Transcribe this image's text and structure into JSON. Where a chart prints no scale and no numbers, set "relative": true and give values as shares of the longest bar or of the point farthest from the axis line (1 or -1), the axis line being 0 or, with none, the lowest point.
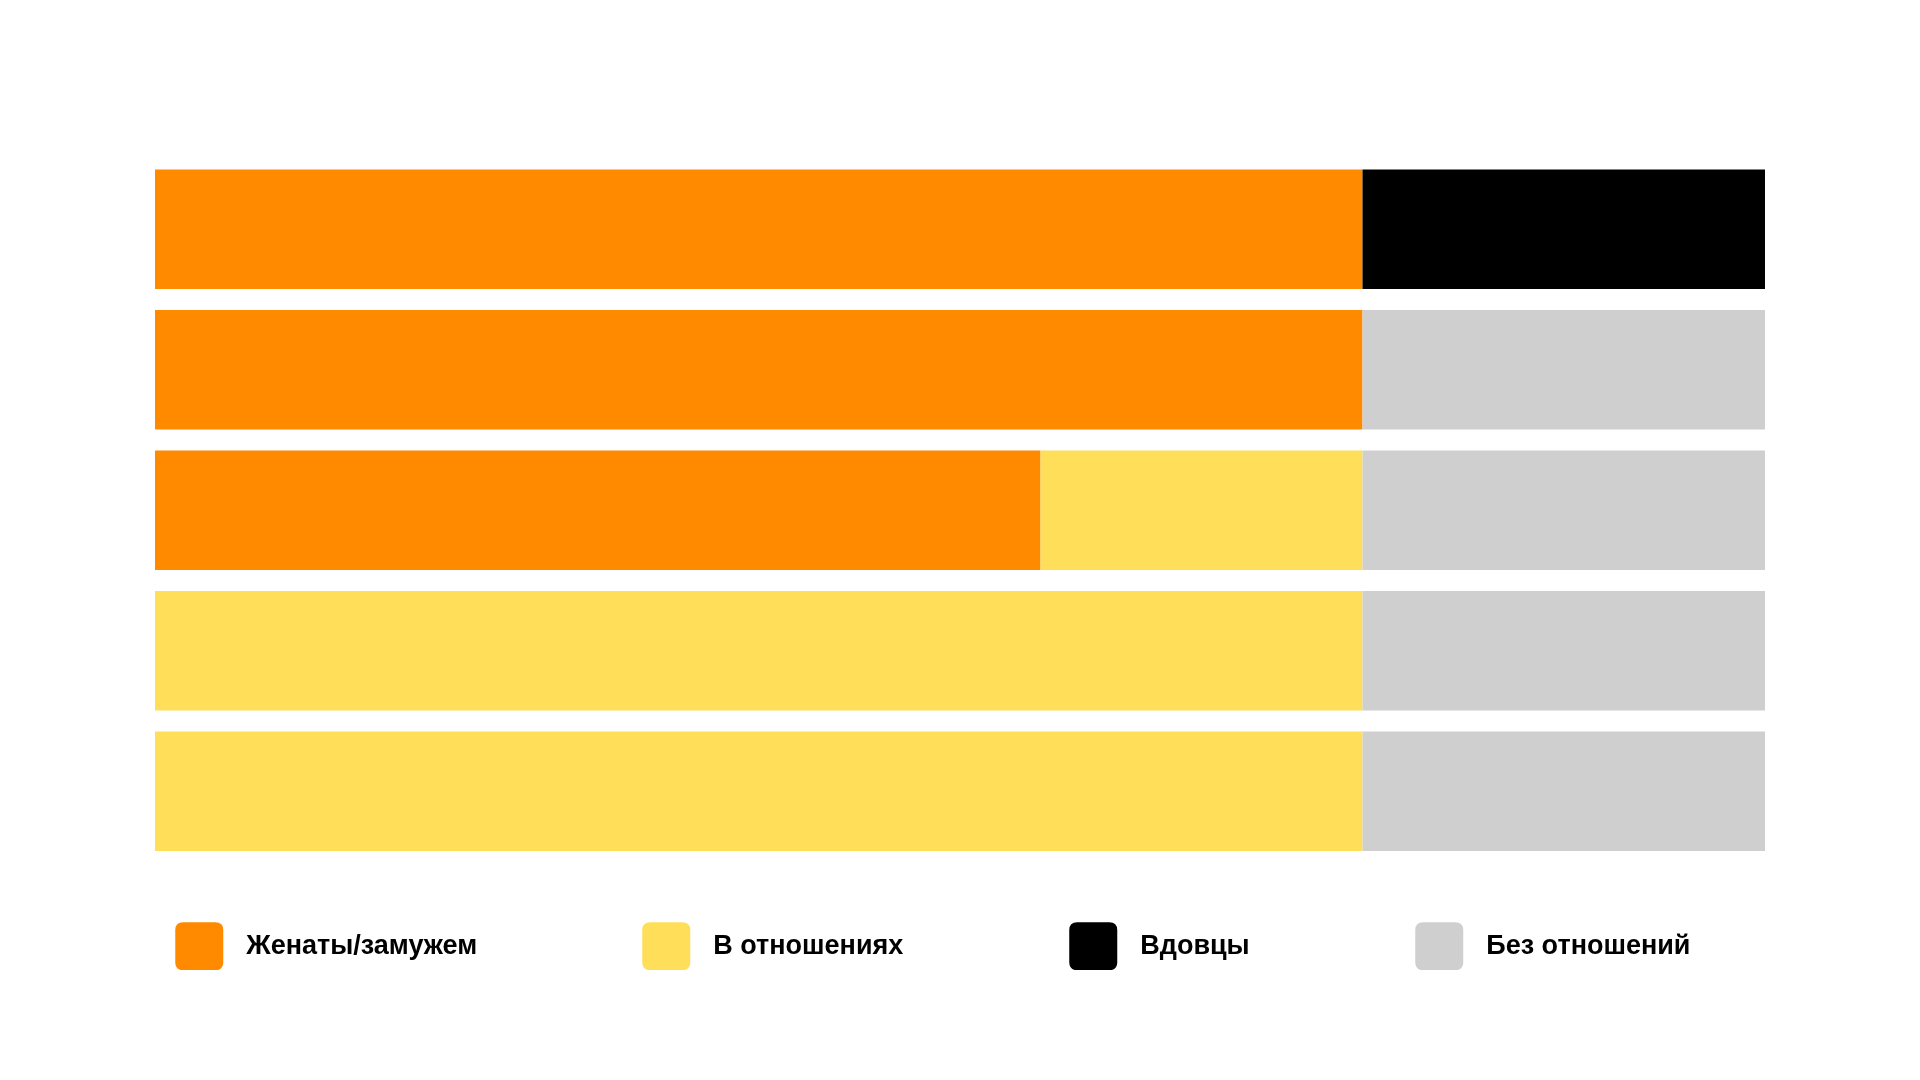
{
  "chart_data": {
    "type": "bar",
    "orientation": "horizontal",
    "stacked": true,
    "relative": true,
    "categories": [
      null,
      null,
      null,
      null,
      null
    ],
    "series": [
      {
        "name": "Женаты/замужем",
        "color": "#ff8a00",
        "values": [
          0.75,
          0.75,
          0.55,
          null,
          null
        ]
      },
      {
        "name": "В отношениях",
        "color": "#ffde59",
        "values": [
          null,
          null,
          0.2,
          0.75,
          0.75
        ]
      },
      {
        "name": "Вдовцы",
        "color": "#000000",
        "values": [
          0.25,
          null,
          null,
          null,
          null
        ]
      },
      {
        "name": "Без отношений",
        "color": "#d0cfd0",
        "values": [
          null,
          0.25,
          0.25,
          0.25,
          0.25
        ]
      }
    ],
    "legend": "bottom"
  }
}
